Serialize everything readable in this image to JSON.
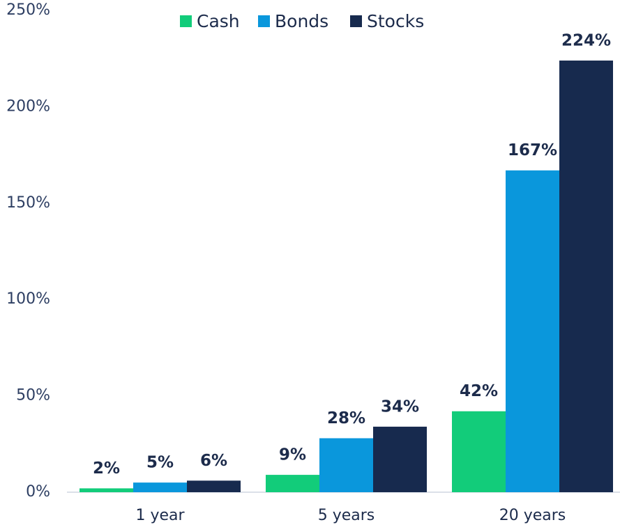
{
  "chart_data": {
    "type": "bar",
    "categories": [
      "1 year",
      "5 years",
      "20 years"
    ],
    "series": [
      {
        "name": "Cash",
        "color": "#12cc7a",
        "values": [
          2,
          9,
          42
        ],
        "value_labels": [
          "2%",
          "9%",
          "42%"
        ]
      },
      {
        "name": "Bonds",
        "color": "#0a97dc",
        "values": [
          5,
          28,
          167
        ],
        "value_labels": [
          "5%",
          "28%",
          "167%"
        ]
      },
      {
        "name": "Stocks",
        "color": "#172a4e",
        "values": [
          6,
          34,
          224
        ],
        "value_labels": [
          "6%",
          "34%",
          "224%"
        ]
      }
    ],
    "ylim": [
      0,
      250
    ],
    "yticks": [
      {
        "value": 0,
        "label": "0%"
      },
      {
        "value": 50,
        "label": "50%"
      },
      {
        "value": 100,
        "label": "100%"
      },
      {
        "value": 150,
        "label": "150%"
      },
      {
        "value": 200,
        "label": "200%"
      },
      {
        "value": 250,
        "label": "250%"
      }
    ],
    "grid": false,
    "legend": "top"
  }
}
